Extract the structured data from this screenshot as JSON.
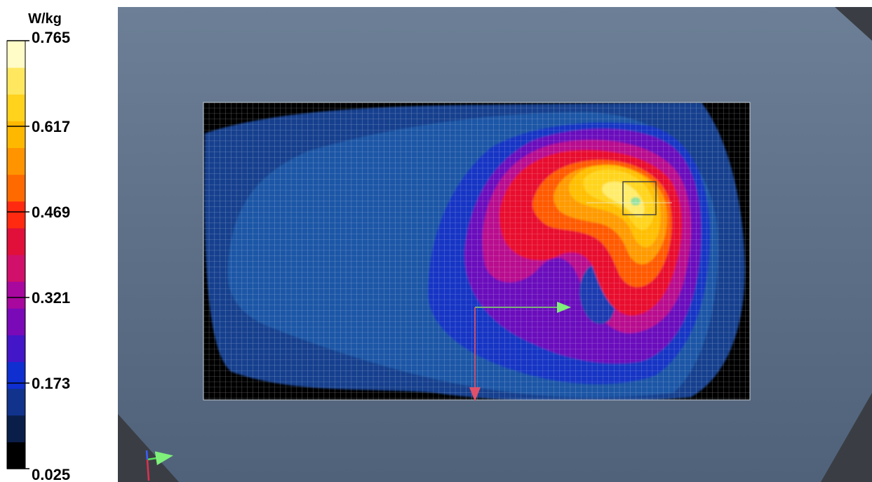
{
  "chart_data": {
    "type": "heatmap",
    "unit": "W/kg",
    "colorbar": {
      "min": 0.025,
      "max": 0.765,
      "tick_labels": [
        "0.765",
        "0.617",
        "0.469",
        "0.321",
        "0.173",
        "0.025"
      ],
      "tick_values": [
        0.765,
        0.617,
        0.469,
        0.321,
        0.173,
        0.025
      ],
      "band_count": 15,
      "band_colors": [
        "#000000",
        "#0a1e4a",
        "#11338c",
        "#0f2fd0",
        "#4316c8",
        "#7a0ab8",
        "#a8089e",
        "#d0106a",
        "#e0103a",
        "#ff2a10",
        "#ff6a00",
        "#ff9400",
        "#ffb800",
        "#ffd21c",
        "#ffe860",
        "#fffcc8"
      ]
    },
    "grid": true,
    "peak_value": 0.765,
    "background_value": 0.025
  }
}
